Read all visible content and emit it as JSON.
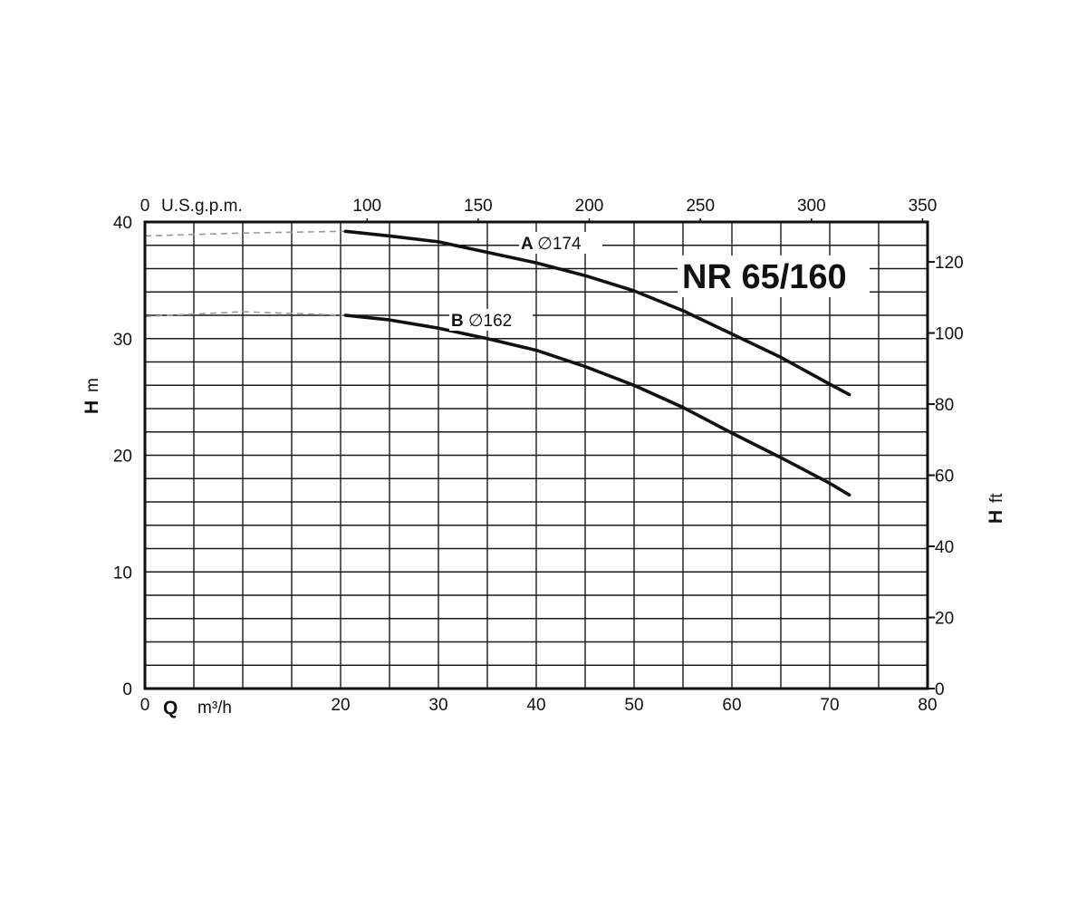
{
  "chart_data": {
    "type": "line",
    "title": "NR 65/160",
    "x_axis": {
      "letter": "Q",
      "unit": "m³/h",
      "range": [
        0,
        80
      ],
      "ticks": [
        0,
        20,
        30,
        40,
        50,
        60,
        70,
        80
      ],
      "grid_step": 5
    },
    "x2_axis": {
      "unit": "U.S.g.p.m.",
      "range_note": "top axis",
      "ticks": [
        0,
        100,
        150,
        200,
        250,
        300,
        350
      ],
      "m3h_per_unit": 0.2271
    },
    "y_axis": {
      "letter": "H",
      "unit": "m",
      "range": [
        0,
        40
      ],
      "ticks": [
        0,
        10,
        20,
        30,
        40
      ],
      "grid_step": 2
    },
    "y2_axis": {
      "letter": "H",
      "unit": "ft",
      "ticks": [
        0,
        20,
        40,
        60,
        80,
        100,
        120
      ],
      "m_per_unit": 0.3048
    },
    "grid": true,
    "series": [
      {
        "letter": "A",
        "name": "∅174",
        "color": "#111111",
        "dashed": {
          "x": [
            0,
            10,
            20.5
          ],
          "y": [
            38.8,
            39.05,
            39.2
          ]
        },
        "x": [
          20.5,
          25,
          30,
          35,
          40,
          45,
          50,
          55,
          60,
          65,
          70,
          72
        ],
        "y": [
          39.2,
          38.8,
          38.3,
          37.4,
          36.5,
          35.4,
          34.1,
          32.4,
          30.4,
          28.4,
          26.1,
          25.2
        ]
      },
      {
        "letter": "B",
        "name": "∅162",
        "color": "#111111",
        "dashed": {
          "x": [
            0,
            10,
            20.5
          ],
          "y": [
            31.9,
            32.3,
            32.0
          ]
        },
        "x": [
          20.5,
          25,
          30,
          35,
          40,
          45,
          50,
          55,
          60,
          65,
          70,
          72
        ],
        "y": [
          32.0,
          31.6,
          30.9,
          30.0,
          29.0,
          27.6,
          26.0,
          24.1,
          21.9,
          19.8,
          17.6,
          16.6
        ]
      }
    ]
  }
}
